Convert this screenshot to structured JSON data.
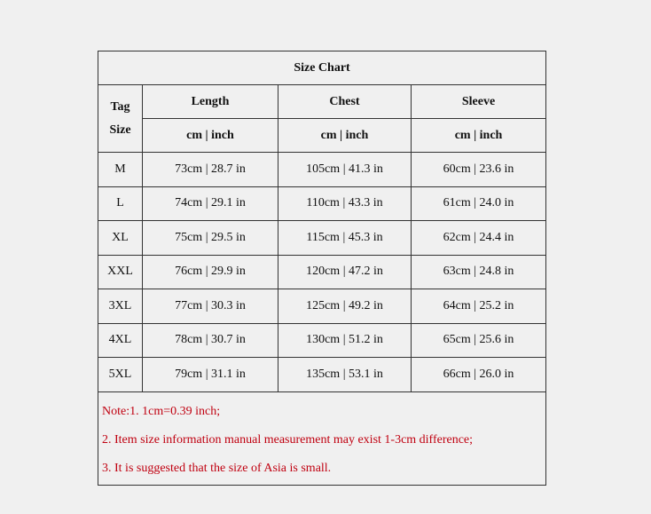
{
  "title": "Size Chart",
  "headers": {
    "tag_size": [
      "Tag",
      "Size"
    ],
    "columns": [
      "Length",
      "Chest",
      "Sleeve"
    ],
    "units": [
      "cm | inch",
      "cm | inch",
      "cm | inch"
    ]
  },
  "rows": [
    {
      "size": "M",
      "length": "73cm | 28.7 in",
      "chest": "105cm | 41.3 in",
      "sleeve": "60cm | 23.6 in"
    },
    {
      "size": "L",
      "length": "74cm | 29.1 in",
      "chest": "110cm | 43.3 in",
      "sleeve": "61cm | 24.0 in"
    },
    {
      "size": "XL",
      "length": "75cm | 29.5 in",
      "chest": "115cm | 45.3 in",
      "sleeve": "62cm | 24.4 in"
    },
    {
      "size": "XXL",
      "length": "76cm | 29.9 in",
      "chest": "120cm | 47.2 in",
      "sleeve": "63cm | 24.8 in"
    },
    {
      "size": "3XL",
      "length": "77cm | 30.3 in",
      "chest": "125cm | 49.2 in",
      "sleeve": "64cm | 25.2 in"
    },
    {
      "size": "4XL",
      "length": "78cm | 30.7 in",
      "chest": "130cm | 51.2 in",
      "sleeve": "65cm | 25.6 in"
    },
    {
      "size": "5XL",
      "length": "79cm | 31.1 in",
      "chest": "135cm | 53.1 in",
      "sleeve": "66cm | 26.0 in"
    }
  ],
  "notes": [
    "Note:1.    1cm=0.39 inch;",
    "2.  Item size information manual measurement may exist 1-3cm difference;",
    "3.  It is suggested that the size of Asia is small."
  ],
  "colors": {
    "note_text": "#c00010",
    "background": "#f0f0f0",
    "border": "#333333"
  }
}
